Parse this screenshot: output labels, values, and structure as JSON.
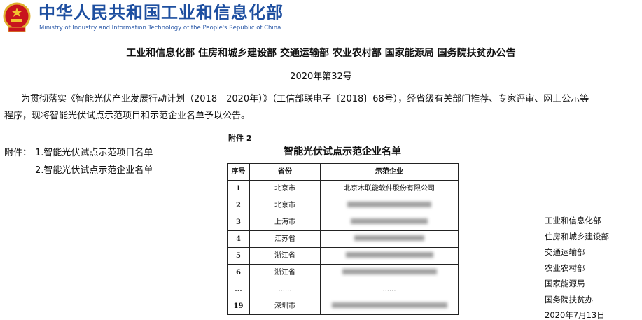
{
  "header": {
    "logo_cn": "中华人民共和国工业和信息化部",
    "logo_en": "Ministry of Industry and Information Technology of the People's Republic of China"
  },
  "doc": {
    "title": "工业和信息化部 住房和城乡建设部 交通运输部 农业农村部 国家能源局 国务院扶贫办公告",
    "number": "2020年第32号",
    "para_line1": "为贯彻落实《智能光伏产业发展行动计划（2018—2020年）》（工信部联电子〔2018〕68号），经省级有关部门推荐、专家评审、网上公示等",
    "para_line2": "程序，现将智能光伏试点示范项目和示范企业名单予以公告。",
    "attachments_label": "附件：",
    "attachments": [
      "1.智能光伏试点示范项目名单",
      "2.智能光伏试点示范企业名单"
    ]
  },
  "table": {
    "attachment_label": "附件 2",
    "title": "智能光伏试点示范企业名单",
    "headers": [
      "序号",
      "省份",
      "示范企业"
    ],
    "rows": [
      {
        "no": "1",
        "province": "北京市",
        "company": "北京木联能软件股份有限公司"
      },
      {
        "no": "2",
        "province": "北京市",
        "company": ""
      },
      {
        "no": "3",
        "province": "上海市",
        "company": ""
      },
      {
        "no": "4",
        "province": "江苏省",
        "company": ""
      },
      {
        "no": "5",
        "province": "浙江省",
        "company": ""
      },
      {
        "no": "6",
        "province": "浙江省",
        "company": ""
      },
      {
        "no": "...",
        "province": "......",
        "company": "......"
      },
      {
        "no": "19",
        "province": "深圳市",
        "company": ""
      }
    ]
  },
  "signatures": [
    "工业和信息化部",
    "住房和城乡建设部",
    "交通运输部",
    "农业农村部",
    "国家能源局",
    "国务院扶贫办",
    "2020年7月13日"
  ]
}
